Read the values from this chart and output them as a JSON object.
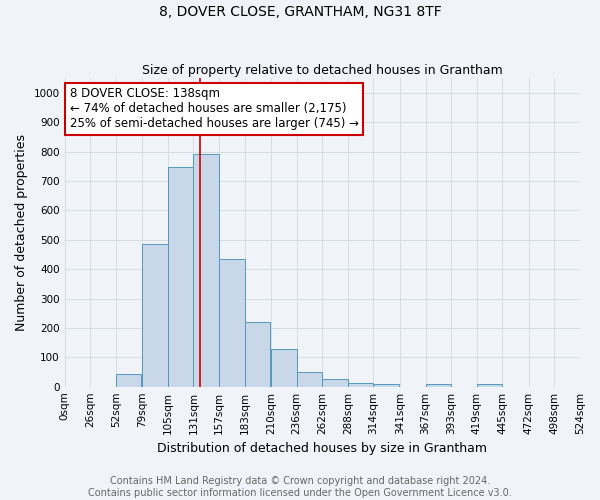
{
  "title": "8, DOVER CLOSE, GRANTHAM, NG31 8TF",
  "subtitle": "Size of property relative to detached houses in Grantham",
  "xlabel": "Distribution of detached houses by size in Grantham",
  "ylabel": "Number of detached properties",
  "bin_edges": [
    0,
    26,
    52,
    79,
    105,
    131,
    157,
    183,
    210,
    236,
    262,
    288,
    314,
    341,
    367,
    393,
    419,
    445,
    472,
    498,
    524
  ],
  "bar_heights": [
    0,
    0,
    44,
    487,
    748,
    793,
    434,
    219,
    129,
    50,
    27,
    13,
    10,
    0,
    8,
    0,
    8,
    0,
    0,
    0
  ],
  "bar_color": "#c8d8e8",
  "bar_edge_color": "#5599bb",
  "property_size": 138,
  "property_line_color": "#cc0000",
  "annotation_text": "8 DOVER CLOSE: 138sqm\n← 74% of detached houses are smaller (2,175)\n25% of semi-detached houses are larger (745) →",
  "annotation_box_color": "#ffffff",
  "annotation_box_edge_color": "#cc0000",
  "yticks": [
    0,
    100,
    200,
    300,
    400,
    500,
    600,
    700,
    800,
    900,
    1000
  ],
  "ylim": [
    0,
    1050
  ],
  "xtick_labels": [
    "0sqm",
    "26sqm",
    "52sqm",
    "79sqm",
    "105sqm",
    "131sqm",
    "157sqm",
    "183sqm",
    "210sqm",
    "236sqm",
    "262sqm",
    "288sqm",
    "314sqm",
    "341sqm",
    "367sqm",
    "393sqm",
    "419sqm",
    "445sqm",
    "472sqm",
    "498sqm",
    "524sqm"
  ],
  "footnote": "Contains HM Land Registry data © Crown copyright and database right 2024.\nContains public sector information licensed under the Open Government Licence v3.0.",
  "grid_color": "#d0d8e0",
  "background_color": "#f0f4f8",
  "title_fontsize": 10,
  "subtitle_fontsize": 9,
  "axis_label_fontsize": 9,
  "tick_fontsize": 7.5,
  "annotation_fontsize": 8.5,
  "footnote_fontsize": 7
}
